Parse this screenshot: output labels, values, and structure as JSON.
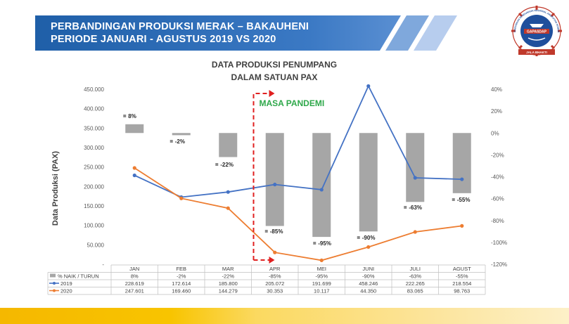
{
  "header": {
    "line1": "PERBANDINGAN PRODUKSI MERAK – BAKAUHENI",
    "line2": "PERIODE JANUARI - AGUSTUS 2019 VS 2020"
  },
  "logo": {
    "text_top": "GABUNGAN PENGUSAHA NASIONAL ANGKUTAN SUNGAI, DANAU DAN PENYEBERANGAN",
    "text_center": "GAPASDAP",
    "text_ribbon": "JALA BHAKTI"
  },
  "colors": {
    "banner_dark": "#1f5fa8",
    "banner_light": "#8fb3e0",
    "bar": "#a6a6a6",
    "line_2019": "#4472c4",
    "line_2020": "#ed7d31",
    "pandemic": "#e02020",
    "pandemic_label": "#2ea84a",
    "footer_yellow": "#f5b800"
  },
  "chart_data": {
    "type": "bar",
    "title_line1": "DATA PRODUKSI PENUMPANG",
    "title_line2": "DALAM SATUAN PAX",
    "ylabel": "Data Produksi (PAX)",
    "categories": [
      "JAN",
      "FEB",
      "MAR",
      "APR",
      "MEI",
      "JUNI",
      "JULI",
      "AGUST"
    ],
    "y_left": {
      "min": 0,
      "max": 450000,
      "ticks": [
        "-",
        "50.000",
        "100.000",
        "150.000",
        "200.000",
        "250.000",
        "300.000",
        "350.000",
        "400.000",
        "450.000"
      ]
    },
    "y_right": {
      "min": -120,
      "max": 40,
      "ticks": [
        "-120%",
        "-100%",
        "-80%",
        "-60%",
        "-40%",
        "-20%",
        "0%",
        "20%",
        "40%"
      ]
    },
    "series": [
      {
        "name": "% NAIK / TURUN",
        "kind": "bar",
        "axis": "right",
        "values": [
          8,
          -2,
          -22,
          -85,
          -95,
          -90,
          -63,
          -55
        ],
        "labels": [
          "8%",
          "-2%",
          "-22%",
          "-85%",
          "-95%",
          "-90%",
          "-63%",
          "-55%"
        ],
        "data_labels": [
          "8%",
          "-2%",
          "-22%",
          "-85%",
          "-95%",
          "-90%",
          "-63%",
          "-55%"
        ]
      },
      {
        "name": "2019",
        "kind": "line",
        "axis": "left",
        "values": [
          228619,
          172614,
          185800,
          205072,
          191699,
          458246,
          222265,
          218554
        ],
        "labels": [
          "228.619",
          "172.614",
          "185.800",
          "205.072",
          "191.699",
          "458.246",
          "222.265",
          "218.554"
        ]
      },
      {
        "name": "2020",
        "kind": "line",
        "axis": "left",
        "values": [
          247601,
          169460,
          144279,
          30353,
          10117,
          44350,
          83065,
          98763
        ],
        "labels": [
          "247.601",
          "169.460",
          "144.279",
          "30.353",
          "10.117",
          "44.350",
          "83.065",
          "98.763"
        ]
      }
    ],
    "annotation": {
      "text": "MASA PANDEMI",
      "start_category": "APR"
    },
    "legend": "data-table-below",
    "grid": false
  }
}
